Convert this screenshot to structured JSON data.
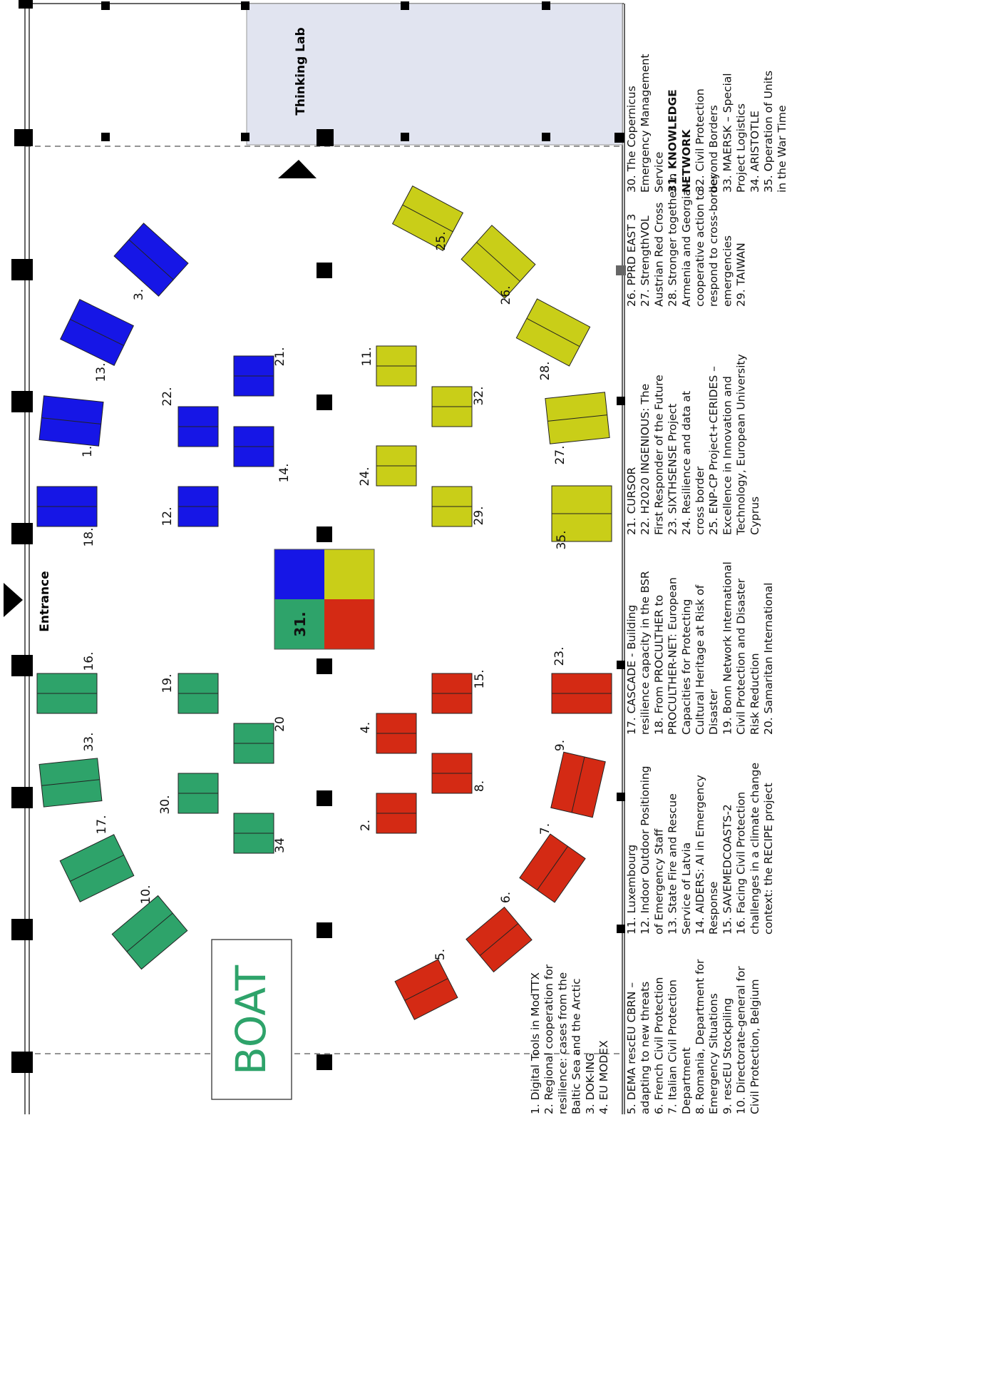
{
  "labels": {
    "thinking_lab": "Thinking Lab",
    "entrance": "Entrance",
    "boat": "BOAT",
    "center": "31."
  },
  "colors": {
    "blue": "#1616e6",
    "yellow": "#c9ce18",
    "green": "#2ea36a",
    "red": "#d42a14",
    "thinking_lab_fill": "#e1e4f0"
  },
  "booths": [
    {
      "num": "1.",
      "color": "blue"
    },
    {
      "num": "2.",
      "color": "red"
    },
    {
      "num": "3.",
      "color": "blue"
    },
    {
      "num": "4.",
      "color": "red"
    },
    {
      "num": "5.",
      "color": "red"
    },
    {
      "num": "6.",
      "color": "red"
    },
    {
      "num": "7.",
      "color": "red"
    },
    {
      "num": "8.",
      "color": "red"
    },
    {
      "num": "9.",
      "color": "red"
    },
    {
      "num": "10.",
      "color": "green"
    },
    {
      "num": "11.",
      "color": "yellow"
    },
    {
      "num": "12.",
      "color": "blue"
    },
    {
      "num": "13.",
      "color": "blue"
    },
    {
      "num": "14.",
      "color": "blue"
    },
    {
      "num": "15.",
      "color": "red"
    },
    {
      "num": "16.",
      "color": "green"
    },
    {
      "num": "17.",
      "color": "green"
    },
    {
      "num": "18.",
      "color": "blue"
    },
    {
      "num": "19.",
      "color": "green"
    },
    {
      "num": "20",
      "color": "green"
    },
    {
      "num": "21.",
      "color": "blue"
    },
    {
      "num": "22.",
      "color": "blue"
    },
    {
      "num": "23.",
      "color": "red"
    },
    {
      "num": "24.",
      "color": "yellow"
    },
    {
      "num": "25.",
      "color": "yellow"
    },
    {
      "num": "26.",
      "color": "yellow"
    },
    {
      "num": "27.",
      "color": "yellow"
    },
    {
      "num": "28.",
      "color": "yellow"
    },
    {
      "num": "29.",
      "color": "yellow"
    },
    {
      "num": "30.",
      "color": "green"
    },
    {
      "num": "32.",
      "color": "yellow"
    },
    {
      "num": "33.",
      "color": "green"
    },
    {
      "num": "34",
      "color": "green"
    },
    {
      "num": "35.",
      "color": "yellow"
    }
  ],
  "legend": [
    [
      "1. Digital Tools in ModTTX",
      "2. Regional cooperation for",
      "resilience: cases from the",
      "Baltic Sea and the Arctic",
      "3. DOK-ING",
      "4. EU MODEX"
    ],
    [
      "5. DEMA rescEU CBRN –",
      "adapting to new threats",
      "6. French Civil Protection",
      "7. Italian Civil Protection",
      "Department",
      "8. Romania, Department for",
      "Emergency Situations",
      "9. rescEU Stockpiling",
      "10. Directorate-general for",
      "Civil Protection, Belgium"
    ],
    [
      "11. Luxembourg",
      "12. Indoor Outdoor Positioning",
      "of Emergency Staff",
      "13. State Fire and Rescue",
      "Service of Latvia",
      "14. AIDERS: AI in Emergency",
      "Response",
      "15. SAVEMEDCOASTS-2",
      "16. Facing Civil Protection",
      "challenges in a climate change",
      "context: the RECIPE project"
    ],
    [
      "17. CASCADE - Building",
      "resilience capacity in the BSR",
      "18. From PROCULTHER to",
      "PROCULTHER-NET: European",
      "Capacities for Protecting",
      "Cultural Heritage at Risk of",
      "Disaster",
      "19. Bonn Network International",
      "Civil Protection and Disaster",
      "Risk Reduction",
      "20. Samaritan International"
    ],
    [
      "21. CURSOR",
      "22. H2020 INGENIOUS: The",
      "First Responder of the Future",
      "23. SIXTHSENSE Project",
      "24. Resilience and data at",
      "cross border",
      "25. ENP-CP Project+CERIDES –",
      "Excellence in Innovation and",
      "Technology, European University",
      "Cyprus"
    ],
    [
      "26. PPRD EAST 3",
      "27. StrengthVOL",
      "Austrian Red Cross",
      "28. Stronger together in",
      "Armenia and Georgia -",
      "cooperative action to",
      "respond to cross-border",
      "emergencies",
      "29. TAIWAN"
    ],
    [
      "30. The Copernicus",
      "Emergency Management",
      "Service",
      "31. KNOWLEDGE",
      "NETWORK",
      "32. Civil Protection",
      "beyond Borders",
      "33. MAERSK – Special",
      "Project Logistics",
      "34. ARISTOTLE",
      "35. Operation of  Units",
      "in the War Time"
    ]
  ]
}
